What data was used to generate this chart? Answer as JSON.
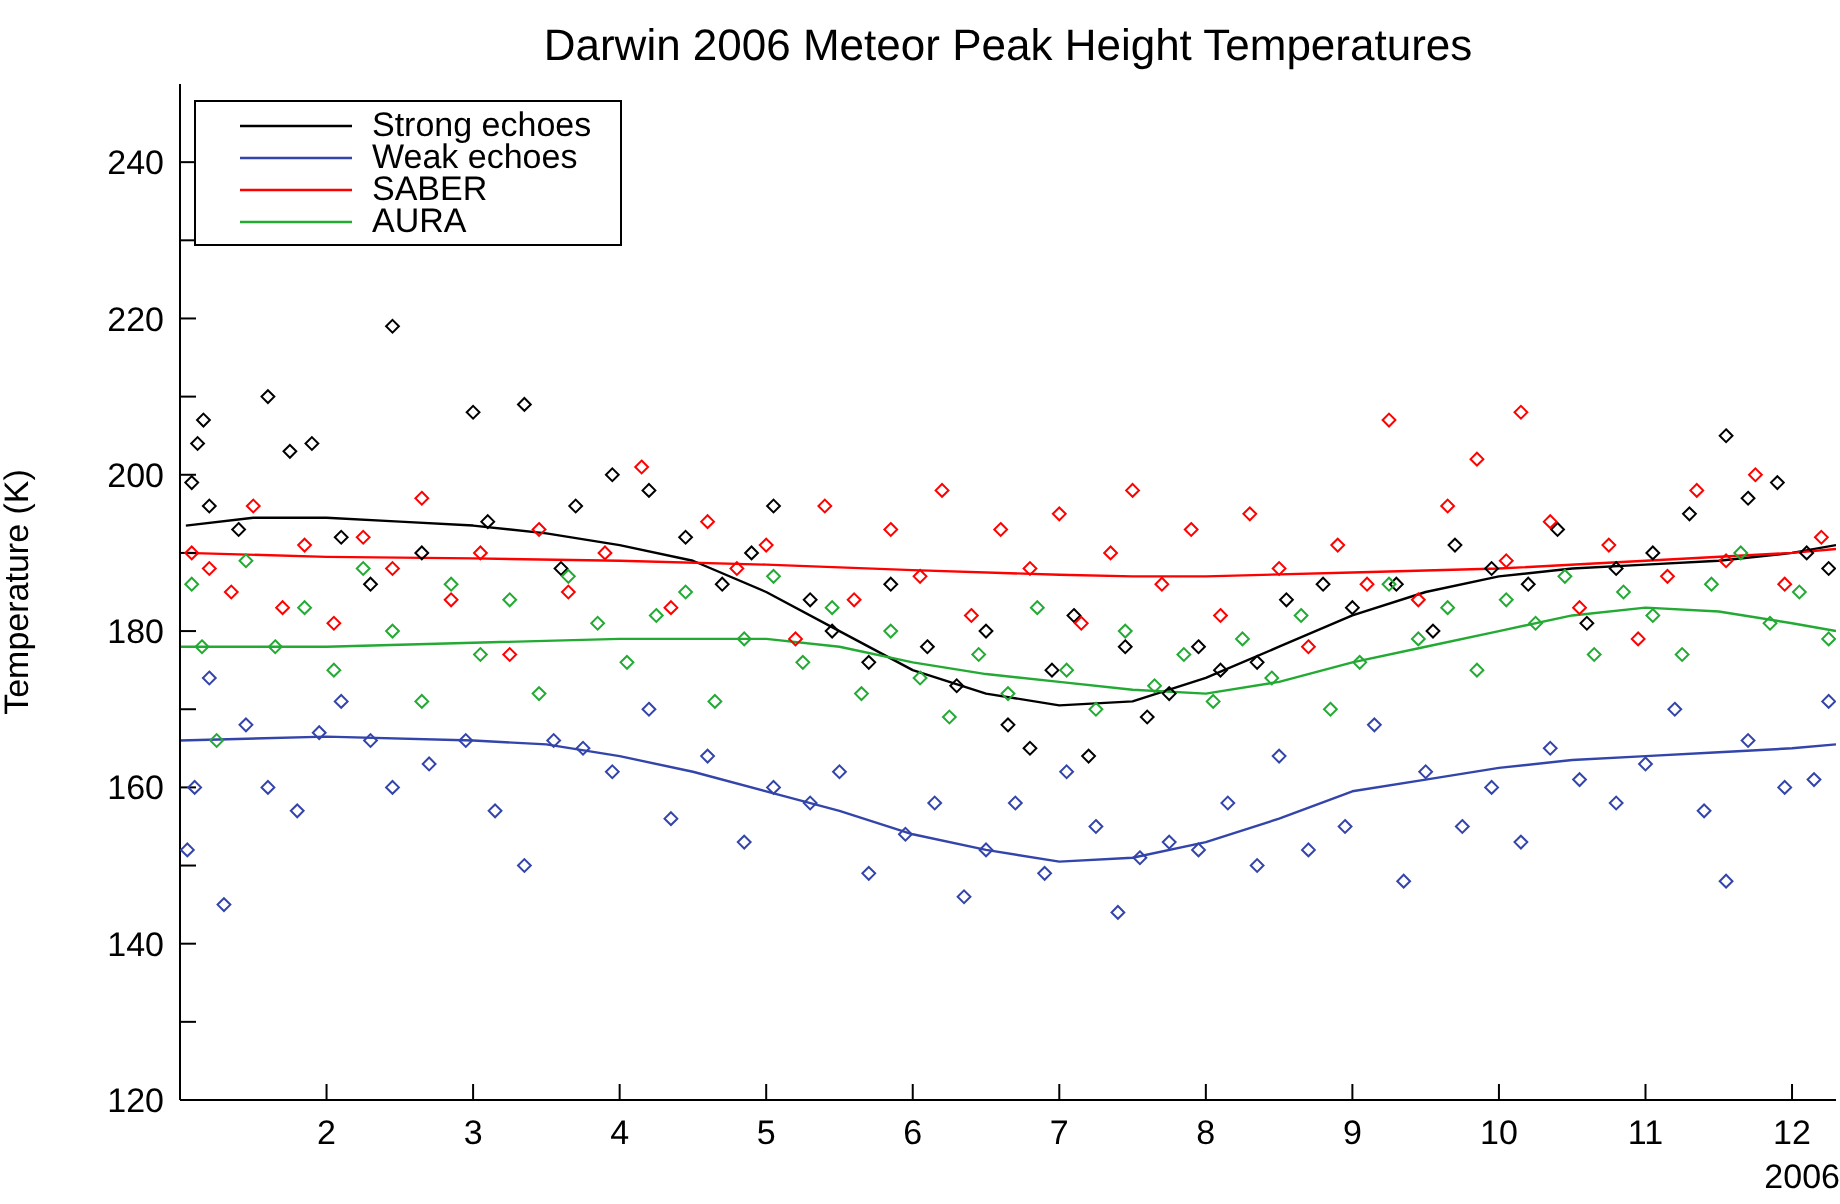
{
  "chart_data": {
    "type": "scatter",
    "title": "Darwin 2006 Meteor Peak Height Temperatures",
    "xlabel": "2006",
    "ylabel": "Temperature (K)",
    "xlim": [
      1,
      12.3
    ],
    "xticks": [
      2,
      3,
      4,
      5,
      6,
      7,
      8,
      9,
      10,
      11,
      12
    ],
    "ylim": [
      120,
      250
    ],
    "yticks": [
      120,
      {
        "value": 130,
        "label": null
      },
      140,
      {
        "value": 150,
        "label": null
      },
      160,
      {
        "value": 170,
        "label": null
      },
      180,
      {
        "value": 190,
        "label": null
      },
      200,
      {
        "value": 210,
        "label": null
      },
      220,
      {
        "value": 230,
        "label": null
      },
      240
    ],
    "grid": false,
    "legend": "top left",
    "marker": "diamond",
    "series": [
      {
        "color": "#000000",
        "x": [
          1.08,
          1.12,
          1.16,
          1.2,
          1.4,
          1.6,
          1.75,
          1.9,
          2.1,
          2.3,
          2.45,
          2.65,
          3.0,
          3.1,
          3.35,
          3.6,
          3.7,
          3.95,
          4.2,
          4.45,
          4.7,
          4.9,
          5.05,
          5.3,
          5.45,
          5.7,
          5.85,
          6.1,
          6.3,
          6.5,
          6.65,
          6.8,
          6.95,
          7.1,
          7.2,
          7.45,
          7.6,
          7.75,
          7.95,
          8.1,
          8.35,
          8.55,
          8.8,
          9.0,
          9.3,
          9.55,
          9.7,
          9.95,
          10.2,
          10.4,
          10.6,
          10.8,
          11.05,
          11.3,
          11.55,
          11.7,
          11.9,
          12.1,
          12.25
        ],
        "values": [
          199,
          204,
          207,
          196,
          193,
          210,
          203,
          204,
          192,
          186,
          219,
          190,
          208,
          194,
          209,
          188,
          196,
          200,
          198,
          192,
          186,
          190,
          196,
          184,
          180,
          176,
          186,
          178,
          173,
          180,
          168,
          165,
          175,
          182,
          164,
          178,
          169,
          172,
          178,
          175,
          176,
          184,
          186,
          183,
          186,
          180,
          191,
          188,
          186,
          193,
          181,
          188,
          190,
          195,
          205,
          197,
          199,
          190,
          188
        ]
      },
      {
        "color": "#3344aa",
        "x": [
          1.05,
          1.1,
          1.2,
          1.3,
          1.45,
          1.6,
          1.8,
          1.95,
          2.1,
          2.3,
          2.45,
          2.7,
          2.95,
          3.15,
          3.35,
          3.55,
          3.75,
          3.95,
          4.2,
          4.35,
          4.6,
          4.85,
          5.05,
          5.3,
          5.5,
          5.7,
          5.95,
          6.15,
          6.35,
          6.5,
          6.7,
          6.9,
          7.05,
          7.25,
          7.4,
          7.55,
          7.75,
          7.95,
          8.15,
          8.35,
          8.5,
          8.7,
          8.95,
          9.15,
          9.35,
          9.5,
          9.75,
          9.95,
          10.15,
          10.35,
          10.55,
          10.8,
          11.0,
          11.2,
          11.4,
          11.55,
          11.7,
          11.95,
          12.15,
          12.25
        ],
        "values": [
          152,
          160,
          174,
          145,
          168,
          160,
          157,
          167,
          171,
          166,
          160,
          163,
          166,
          157,
          150,
          166,
          165,
          162,
          170,
          156,
          164,
          153,
          160,
          158,
          162,
          149,
          154,
          158,
          146,
          152,
          158,
          149,
          162,
          155,
          144,
          151,
          153,
          152,
          158,
          150,
          164,
          152,
          155,
          168,
          148,
          162,
          155,
          160,
          153,
          165,
          161,
          158,
          163,
          170,
          157,
          148,
          166,
          160,
          161,
          171
        ]
      },
      {
        "color": "#ff0000",
        "x": [
          1.08,
          1.2,
          1.35,
          1.5,
          1.7,
          1.85,
          2.05,
          2.25,
          2.45,
          2.65,
          2.85,
          3.05,
          3.25,
          3.45,
          3.65,
          3.9,
          4.15,
          4.35,
          4.6,
          4.8,
          5.0,
          5.2,
          5.4,
          5.6,
          5.85,
          6.05,
          6.2,
          6.4,
          6.6,
          6.8,
          7.0,
          7.15,
          7.35,
          7.5,
          7.7,
          7.9,
          8.1,
          8.3,
          8.5,
          8.7,
          8.9,
          9.1,
          9.25,
          9.45,
          9.65,
          9.85,
          10.05,
          10.15,
          10.35,
          10.55,
          10.75,
          10.95,
          11.15,
          11.35,
          11.55,
          11.75,
          11.95,
          12.2
        ],
        "values": [
          190,
          188,
          185,
          196,
          183,
          191,
          181,
          192,
          188,
          197,
          184,
          190,
          177,
          193,
          185,
          190,
          201,
          183,
          194,
          188,
          191,
          179,
          196,
          184,
          193,
          187,
          198,
          182,
          193,
          188,
          195,
          181,
          190,
          198,
          186,
          193,
          182,
          195,
          188,
          178,
          191,
          186,
          207,
          184,
          196,
          202,
          189,
          208,
          194,
          183,
          191,
          179,
          187,
          198,
          189,
          200,
          186,
          192
        ]
      },
      {
        "color": "#22aa33",
        "x": [
          1.08,
          1.15,
          1.25,
          1.45,
          1.65,
          1.85,
          2.05,
          2.25,
          2.45,
          2.65,
          2.85,
          3.05,
          3.25,
          3.45,
          3.65,
          3.85,
          4.05,
          4.25,
          4.45,
          4.65,
          4.85,
          5.05,
          5.25,
          5.45,
          5.65,
          5.85,
          6.05,
          6.25,
          6.45,
          6.65,
          6.85,
          7.05,
          7.25,
          7.45,
          7.65,
          7.85,
          8.05,
          8.25,
          8.45,
          8.65,
          8.85,
          9.05,
          9.25,
          9.45,
          9.65,
          9.85,
          10.05,
          10.25,
          10.45,
          10.65,
          10.85,
          11.05,
          11.25,
          11.45,
          11.65,
          11.85,
          12.05,
          12.25
        ],
        "values": [
          186,
          178,
          166,
          189,
          178,
          183,
          175,
          188,
          180,
          171,
          186,
          177,
          184,
          172,
          187,
          181,
          176,
          182,
          185,
          171,
          179,
          187,
          176,
          183,
          172,
          180,
          174,
          169,
          177,
          172,
          183,
          175,
          170,
          180,
          173,
          177,
          171,
          179,
          174,
          182,
          170,
          176,
          186,
          179,
          183,
          175,
          184,
          181,
          187,
          177,
          185,
          182,
          177,
          186,
          190,
          181,
          185,
          179
        ]
      },
      {
        "type": "line",
        "name": "Strong echoes",
        "color": "#000000",
        "marker": "none",
        "line_style": "solid",
        "x": [
          1.04,
          1.5,
          2,
          2.5,
          3,
          3.5,
          4,
          4.5,
          5,
          5.5,
          6,
          6.5,
          7,
          7.5,
          8,
          8.5,
          9,
          9.5,
          10,
          10.5,
          11,
          11.5,
          12,
          12.3
        ],
        "values": [
          193.5,
          194.5,
          194.5,
          194,
          193.5,
          192.5,
          191,
          189,
          185,
          180,
          175,
          172,
          170.5,
          171,
          174,
          178,
          182,
          185,
          187,
          188,
          188.5,
          189,
          190,
          191
        ]
      },
      {
        "type": "line",
        "name": "Weak echoes",
        "color": "#3344aa",
        "marker": "none",
        "line_style": "solid",
        "x": [
          1,
          2,
          3,
          3.5,
          4,
          4.5,
          5,
          5.5,
          6,
          6.5,
          7,
          7.5,
          8,
          8.5,
          9,
          9.5,
          10,
          10.5,
          11,
          11.5,
          12,
          12.3
        ],
        "values": [
          166,
          166.5,
          166,
          165.5,
          164,
          162,
          159.5,
          157,
          154,
          152,
          150.5,
          151,
          153,
          156,
          159.5,
          161,
          162.5,
          163.5,
          164,
          164.5,
          165,
          165.5
        ]
      },
      {
        "type": "line",
        "name": "SABER",
        "color": "#ff0000",
        "marker": "none",
        "line_style": "solid",
        "x": [
          1.04,
          2,
          3,
          4,
          5,
          6,
          7,
          7.5,
          8,
          9,
          10,
          11,
          12,
          12.3
        ],
        "values": [
          190,
          189.5,
          189.3,
          189,
          188.5,
          187.8,
          187.2,
          187,
          187,
          187.5,
          188,
          189,
          190,
          190.5
        ]
      },
      {
        "type": "line",
        "name": "AURA",
        "color": "#22aa33",
        "marker": "none",
        "line_style": "solid",
        "x": [
          1,
          2,
          3,
          4,
          5,
          5.5,
          6,
          6.5,
          7,
          7.5,
          8,
          8.5,
          9,
          9.5,
          10,
          10.5,
          11,
          11.5,
          12,
          12.3
        ],
        "values": [
          178,
          178,
          178.5,
          179,
          179,
          178,
          176,
          174.5,
          173.5,
          172.5,
          172,
          173.5,
          176,
          178,
          180,
          182,
          183,
          182.5,
          181,
          180
        ]
      }
    ]
  }
}
